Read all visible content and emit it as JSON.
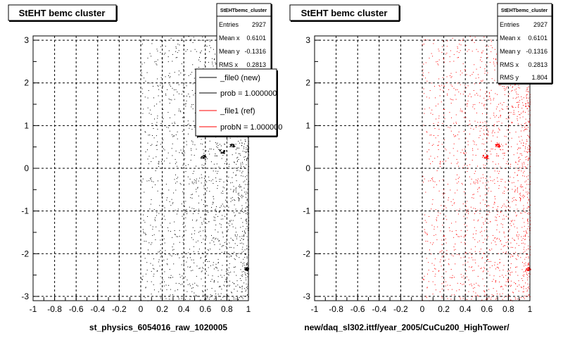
{
  "colors": {
    "background": "#ffffff",
    "frame": "#000000",
    "grid": "#000000",
    "new_points": "#000000",
    "ref_points": "#ff0000",
    "legend_shadow": "#000000"
  },
  "chart_data": [
    {
      "type": "scatter",
      "title": "StEHT bemc cluster",
      "xlabel": "st_physics_6054016_raw_1020005",
      "ylabel": "",
      "xlim": [
        -1,
        1
      ],
      "ylim": [
        -3.1,
        3.1
      ],
      "x_ticks": [
        "-1",
        "-0.8",
        "-0.6",
        "-0.4",
        "-0.2",
        "0",
        "0.2",
        "0.4",
        "0.6",
        "0.8",
        "1"
      ],
      "y_ticks": [
        "3",
        "2",
        "1",
        "0",
        "-1",
        "-2",
        "-3"
      ],
      "grid": true,
      "series": [
        {
          "name": "_file0 (new)",
          "color": "#000000",
          "x_range": [
            0,
            1
          ],
          "y_range": [
            -3.1,
            3.1
          ],
          "count": 2927,
          "clusters": [
            [
              0.85,
              0.55
            ],
            [
              0.75,
              0.4
            ],
            [
              0.58,
              0.28
            ],
            [
              0.98,
              -2.35
            ]
          ]
        }
      ],
      "stats": {
        "name": "StEHTbemc_cluster",
        "rows": [
          {
            "label": "Entries",
            "value": "2927"
          },
          {
            "label": "Mean x",
            "value": "0.6101"
          },
          {
            "label": "Mean y",
            "value": "-0.1316"
          },
          {
            "label": "RMS x",
            "value": "0.2813"
          }
        ]
      },
      "legend": {
        "placement": "top-right",
        "entries": [
          {
            "label": "_file0 (new)",
            "color": "#000000"
          },
          {
            "label": "prob = 1.000000",
            "color": "#000000"
          },
          {
            "label": "_file1 (ref)",
            "color": "#ff0000"
          },
          {
            "label": "probN = 1.000000",
            "color": "#ff0000"
          }
        ]
      }
    },
    {
      "type": "scatter",
      "title": "StEHT bemc cluster",
      "xlabel": "new/daq_sl302.ittf/year_2005/CuCu200_HighTower/",
      "ylabel": "",
      "xlim": [
        -1,
        1
      ],
      "ylim": [
        -3.1,
        3.1
      ],
      "x_ticks": [
        "-1",
        "-0.8",
        "-0.6",
        "-0.4",
        "-0.2",
        "0",
        "0.2",
        "0.4",
        "0.6",
        "0.8",
        "1"
      ],
      "y_ticks": [
        "3",
        "2",
        "1",
        "0",
        "-1",
        "-2",
        "-3"
      ],
      "grid": true,
      "series": [
        {
          "name": "_file1 (ref)",
          "color": "#ff0000",
          "x_range": [
            0,
            1
          ],
          "y_range": [
            -3.1,
            3.1
          ],
          "count": 2927,
          "clusters": [
            [
              0.7,
              0.55
            ],
            [
              0.58,
              0.28
            ],
            [
              0.98,
              -2.35
            ]
          ]
        }
      ],
      "stats": {
        "name": "StEHTbemc_cluster",
        "rows": [
          {
            "label": "Entries",
            "value": "2927"
          },
          {
            "label": "Mean x",
            "value": "0.6101"
          },
          {
            "label": "Mean y",
            "value": "-0.1316"
          },
          {
            "label": "RMS x",
            "value": "0.2813"
          },
          {
            "label": "RMS y",
            "value": "1.804"
          }
        ]
      }
    }
  ]
}
